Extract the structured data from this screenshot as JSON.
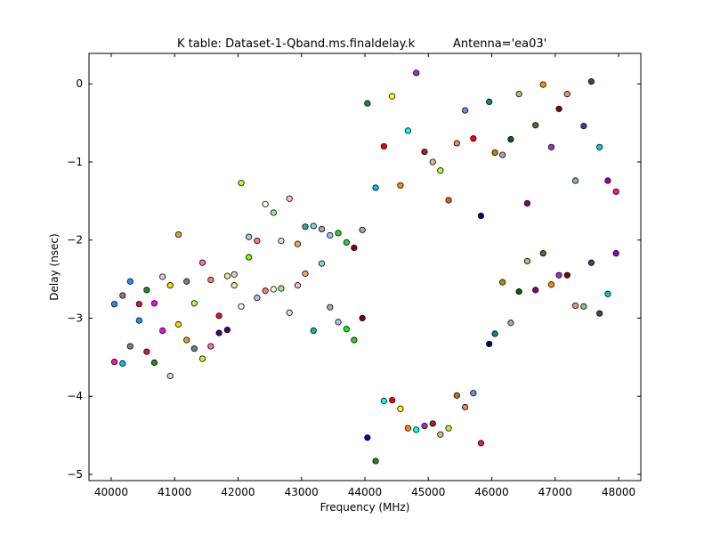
{
  "chart_data": {
    "type": "scatter",
    "title": "K table: Dataset-1-Qband.ms.finaldelay.k",
    "subtitle": "Antenna='ea03'",
    "xlabel": "Frequency (MHz)",
    "ylabel": "Delay (nsec)",
    "xlim": [
      39650,
      48350
    ],
    "ylim": [
      -5.08,
      0.39
    ],
    "x_ticks": [
      40000,
      41000,
      42000,
      43000,
      44000,
      45000,
      46000,
      47000,
      48000
    ],
    "y_ticks": [
      0,
      -1,
      -2,
      -3,
      -4,
      -5
    ],
    "x_tick_labels": [
      "40000",
      "41000",
      "42000",
      "43000",
      "44000",
      "45000",
      "46000",
      "47000",
      "48000"
    ],
    "y_tick_labels": [
      "0",
      "−1",
      "−2",
      "−3",
      "−4",
      "−5"
    ],
    "grid": false,
    "legend": "none",
    "points": [
      {
        "x": 40050,
        "y": -2.82,
        "color": "#1e90ff"
      },
      {
        "x": 40050,
        "y": -3.56,
        "color": "#ff1493"
      },
      {
        "x": 40180,
        "y": -2.71,
        "color": "#808080"
      },
      {
        "x": 40180,
        "y": -3.58,
        "color": "#00bfff"
      },
      {
        "x": 40300,
        "y": -2.53,
        "color": "#1e90ff"
      },
      {
        "x": 40300,
        "y": -3.36,
        "color": "#808080"
      },
      {
        "x": 40440,
        "y": -2.82,
        "color": "#dc143c"
      },
      {
        "x": 40440,
        "y": -3.03,
        "color": "#1e90ff"
      },
      {
        "x": 40560,
        "y": -2.64,
        "color": "#228b22"
      },
      {
        "x": 40560,
        "y": -3.43,
        "color": "#dc143c"
      },
      {
        "x": 40680,
        "y": -2.81,
        "color": "#ff00ff"
      },
      {
        "x": 40680,
        "y": -3.57,
        "color": "#228b22"
      },
      {
        "x": 40810,
        "y": -2.47,
        "color": "#d3d3d3"
      },
      {
        "x": 40810,
        "y": -3.16,
        "color": "#ff00ff"
      },
      {
        "x": 40930,
        "y": -2.58,
        "color": "#ffd700"
      },
      {
        "x": 40930,
        "y": -3.74,
        "color": "#d3d3d3"
      },
      {
        "x": 41060,
        "y": -1.93,
        "color": "#daa520"
      },
      {
        "x": 41060,
        "y": -3.08,
        "color": "#ffd700"
      },
      {
        "x": 41190,
        "y": -2.53,
        "color": "#708090"
      },
      {
        "x": 41190,
        "y": -3.28,
        "color": "#daa520"
      },
      {
        "x": 41310,
        "y": -2.81,
        "color": "#adff2f"
      },
      {
        "x": 41310,
        "y": -3.39,
        "color": "#708090"
      },
      {
        "x": 41440,
        "y": -2.29,
        "color": "#ff69b4"
      },
      {
        "x": 41440,
        "y": -3.52,
        "color": "#adff2f"
      },
      {
        "x": 41570,
        "y": -2.51,
        "color": "#fa8072"
      },
      {
        "x": 41570,
        "y": -3.36,
        "color": "#ff69b4"
      },
      {
        "x": 41700,
        "y": -2.97,
        "color": "#dc143c"
      },
      {
        "x": 41700,
        "y": -3.19,
        "color": "#4b0082"
      },
      {
        "x": 41830,
        "y": -2.46,
        "color": "#f0e68c"
      },
      {
        "x": 41830,
        "y": -3.15,
        "color": "#4b0082"
      },
      {
        "x": 41940,
        "y": -2.44,
        "color": "#d3d3d3"
      },
      {
        "x": 41940,
        "y": -2.58,
        "color": "#f0e68c"
      },
      {
        "x": 42050,
        "y": -1.27,
        "color": "#adff2f"
      },
      {
        "x": 42050,
        "y": -2.85,
        "color": "#f5f5f5"
      },
      {
        "x": 42170,
        "y": -1.96,
        "color": "#b0c4de"
      },
      {
        "x": 42170,
        "y": -2.22,
        "color": "#7cfc00"
      },
      {
        "x": 42300,
        "y": -2.01,
        "color": "#fa8072"
      },
      {
        "x": 42300,
        "y": -2.74,
        "color": "#b0c4de"
      },
      {
        "x": 42430,
        "y": -1.54,
        "color": "#fffacd"
      },
      {
        "x": 42430,
        "y": -2.65,
        "color": "#fa8072"
      },
      {
        "x": 42560,
        "y": -1.65,
        "color": "#90ee90"
      },
      {
        "x": 42560,
        "y": -2.63,
        "color": "#fffacd"
      },
      {
        "x": 42680,
        "y": -2.01,
        "color": "#dcdcdc"
      },
      {
        "x": 42680,
        "y": -2.62,
        "color": "#90ee90"
      },
      {
        "x": 42810,
        "y": -1.47,
        "color": "#ffb6c1"
      },
      {
        "x": 42810,
        "y": -2.93,
        "color": "#dcdcdc"
      },
      {
        "x": 42940,
        "y": -2.05,
        "color": "#f4a460"
      },
      {
        "x": 42940,
        "y": -2.58,
        "color": "#ffb6c1"
      },
      {
        "x": 43060,
        "y": -1.83,
        "color": "#20b2aa"
      },
      {
        "x": 43060,
        "y": -2.43,
        "color": "#f4a460"
      },
      {
        "x": 43190,
        "y": -1.82,
        "color": "#87ceeb"
      },
      {
        "x": 43190,
        "y": -3.16,
        "color": "#20b2aa"
      },
      {
        "x": 43320,
        "y": -1.86,
        "color": "#a9a9a9"
      },
      {
        "x": 43320,
        "y": -2.3,
        "color": "#87ceeb"
      },
      {
        "x": 43450,
        "y": -1.94,
        "color": "#87cefa"
      },
      {
        "x": 43450,
        "y": -2.86,
        "color": "#a9a9a9"
      },
      {
        "x": 43580,
        "y": -1.91,
        "color": "#32cd32"
      },
      {
        "x": 43580,
        "y": -3.05,
        "color": "#b0c4de"
      },
      {
        "x": 43710,
        "y": -2.03,
        "color": "#32cd32"
      },
      {
        "x": 43710,
        "y": -3.14,
        "color": "#00ff00"
      },
      {
        "x": 43830,
        "y": -2.1,
        "color": "#8b0000"
      },
      {
        "x": 43830,
        "y": -3.28,
        "color": "#32cd32"
      },
      {
        "x": 43960,
        "y": -1.87,
        "color": "#8fbc8f"
      },
      {
        "x": 43960,
        "y": -3.0,
        "color": "#8b0000"
      },
      {
        "x": 44040,
        "y": -0.25,
        "color": "#228b22"
      },
      {
        "x": 44040,
        "y": -4.53,
        "color": "#0000cd"
      },
      {
        "x": 44170,
        "y": -1.33,
        "color": "#00bfff"
      },
      {
        "x": 44170,
        "y": -4.83,
        "color": "#228b22"
      },
      {
        "x": 44300,
        "y": -0.8,
        "color": "#ff0000"
      },
      {
        "x": 44300,
        "y": -4.06,
        "color": "#00ffff"
      },
      {
        "x": 44430,
        "y": -0.16,
        "color": "#ffff00"
      },
      {
        "x": 44430,
        "y": -4.05,
        "color": "#ff0000"
      },
      {
        "x": 44560,
        "y": -1.3,
        "color": "#ff8c00"
      },
      {
        "x": 44560,
        "y": -4.16,
        "color": "#ffff00"
      },
      {
        "x": 44680,
        "y": -0.6,
        "color": "#00ffff"
      },
      {
        "x": 44680,
        "y": -4.41,
        "color": "#ff8c00"
      },
      {
        "x": 44810,
        "y": 0.14,
        "color": "#9932cc"
      },
      {
        "x": 44810,
        "y": -4.43,
        "color": "#00ffff"
      },
      {
        "x": 44940,
        "y": -0.87,
        "color": "#b22222"
      },
      {
        "x": 44940,
        "y": -4.38,
        "color": "#9932cc"
      },
      {
        "x": 45070,
        "y": -1.0,
        "color": "#deb887"
      },
      {
        "x": 45070,
        "y": -4.35,
        "color": "#b22222"
      },
      {
        "x": 45190,
        "y": -1.11,
        "color": "#adff2f"
      },
      {
        "x": 45190,
        "y": -4.49,
        "color": "#deb887"
      },
      {
        "x": 45320,
        "y": -1.49,
        "color": "#d2691e"
      },
      {
        "x": 45320,
        "y": -4.41,
        "color": "#adff2f"
      },
      {
        "x": 45450,
        "y": -0.76,
        "color": "#ff7f50"
      },
      {
        "x": 45450,
        "y": -3.99,
        "color": "#d2691e"
      },
      {
        "x": 45580,
        "y": -0.34,
        "color": "#6495ed"
      },
      {
        "x": 45580,
        "y": -4.14,
        "color": "#ff7f50"
      },
      {
        "x": 45710,
        "y": -0.7,
        "color": "#ff0000"
      },
      {
        "x": 45710,
        "y": -3.96,
        "color": "#6495ed"
      },
      {
        "x": 45830,
        "y": -1.69,
        "color": "#00008b"
      },
      {
        "x": 45830,
        "y": -4.6,
        "color": "#e32636"
      },
      {
        "x": 45960,
        "y": -0.23,
        "color": "#008b8b"
      },
      {
        "x": 45960,
        "y": -3.33,
        "color": "#00008b"
      },
      {
        "x": 46050,
        "y": -0.88,
        "color": "#b8860b"
      },
      {
        "x": 46050,
        "y": -3.2,
        "color": "#008b8b"
      },
      {
        "x": 46170,
        "y": -0.91,
        "color": "#a9a9a9"
      },
      {
        "x": 46170,
        "y": -2.54,
        "color": "#b8860b"
      },
      {
        "x": 46300,
        "y": -0.71,
        "color": "#006400"
      },
      {
        "x": 46300,
        "y": -3.06,
        "color": "#a9a9a9"
      },
      {
        "x": 46430,
        "y": -0.13,
        "color": "#bdb76b"
      },
      {
        "x": 46430,
        "y": -2.66,
        "color": "#006400"
      },
      {
        "x": 46560,
        "y": -1.53,
        "color": "#8b008b"
      },
      {
        "x": 46560,
        "y": -2.27,
        "color": "#bdb76b"
      },
      {
        "x": 46690,
        "y": -0.53,
        "color": "#556b2f"
      },
      {
        "x": 46690,
        "y": -2.64,
        "color": "#8b008b"
      },
      {
        "x": 46810,
        "y": -0.01,
        "color": "#ff8c00"
      },
      {
        "x": 46810,
        "y": -2.17,
        "color": "#556b2f"
      },
      {
        "x": 46940,
        "y": -0.81,
        "color": "#9932cc"
      },
      {
        "x": 46940,
        "y": -2.57,
        "color": "#ff8c00"
      },
      {
        "x": 47060,
        "y": -0.32,
        "color": "#8b0000"
      },
      {
        "x": 47060,
        "y": -2.45,
        "color": "#9932cc"
      },
      {
        "x": 47190,
        "y": -0.13,
        "color": "#e9967a"
      },
      {
        "x": 47190,
        "y": -2.45,
        "color": "#8b0000"
      },
      {
        "x": 47320,
        "y": -1.24,
        "color": "#8fbc8f"
      },
      {
        "x": 47320,
        "y": -2.84,
        "color": "#e9967a"
      },
      {
        "x": 47450,
        "y": -0.54,
        "color": "#483d8b"
      },
      {
        "x": 47450,
        "y": -2.85,
        "color": "#8fbc8f"
      },
      {
        "x": 47570,
        "y": 0.03,
        "color": "#2f4f4f"
      },
      {
        "x": 47570,
        "y": -2.29,
        "color": "#483d8b"
      },
      {
        "x": 47700,
        "y": -0.81,
        "color": "#00ced1"
      },
      {
        "x": 47700,
        "y": -2.94,
        "color": "#2f4f4f"
      },
      {
        "x": 47830,
        "y": -1.24,
        "color": "#9400d3"
      },
      {
        "x": 47830,
        "y": -2.69,
        "color": "#00ced1"
      },
      {
        "x": 47960,
        "y": -1.38,
        "color": "#ff1493"
      },
      {
        "x": 47960,
        "y": -2.17,
        "color": "#9400d3"
      }
    ]
  }
}
